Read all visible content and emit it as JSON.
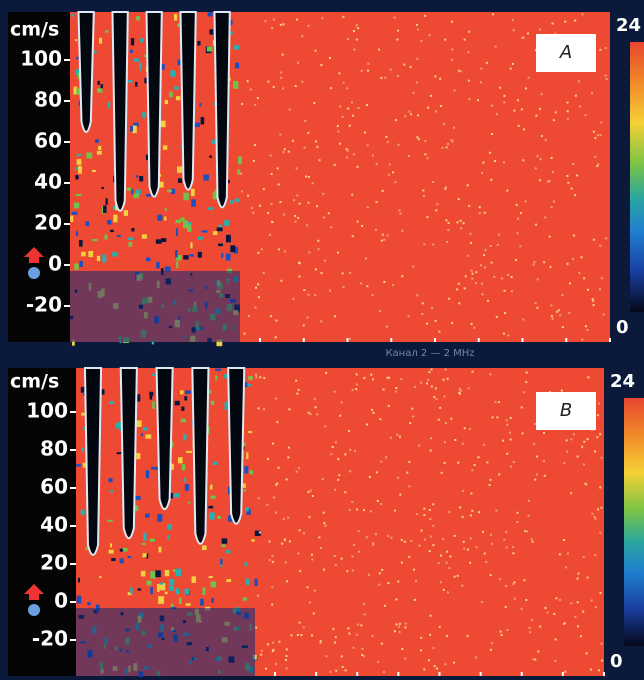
{
  "panels": [
    {
      "label": "A",
      "unit": "cm/s",
      "ticks": [
        "100",
        "80",
        "60",
        "40",
        "20",
        "0",
        "-20"
      ],
      "scale_max": "24",
      "scale_min": "0"
    },
    {
      "label": "B",
      "unit": "cm/s",
      "ticks": [
        "100",
        "80",
        "60",
        "40",
        "20",
        "0",
        "-20"
      ],
      "scale_max": "24",
      "scale_min": "0"
    }
  ],
  "status": "Канал 2 — 2 MHz"
}
